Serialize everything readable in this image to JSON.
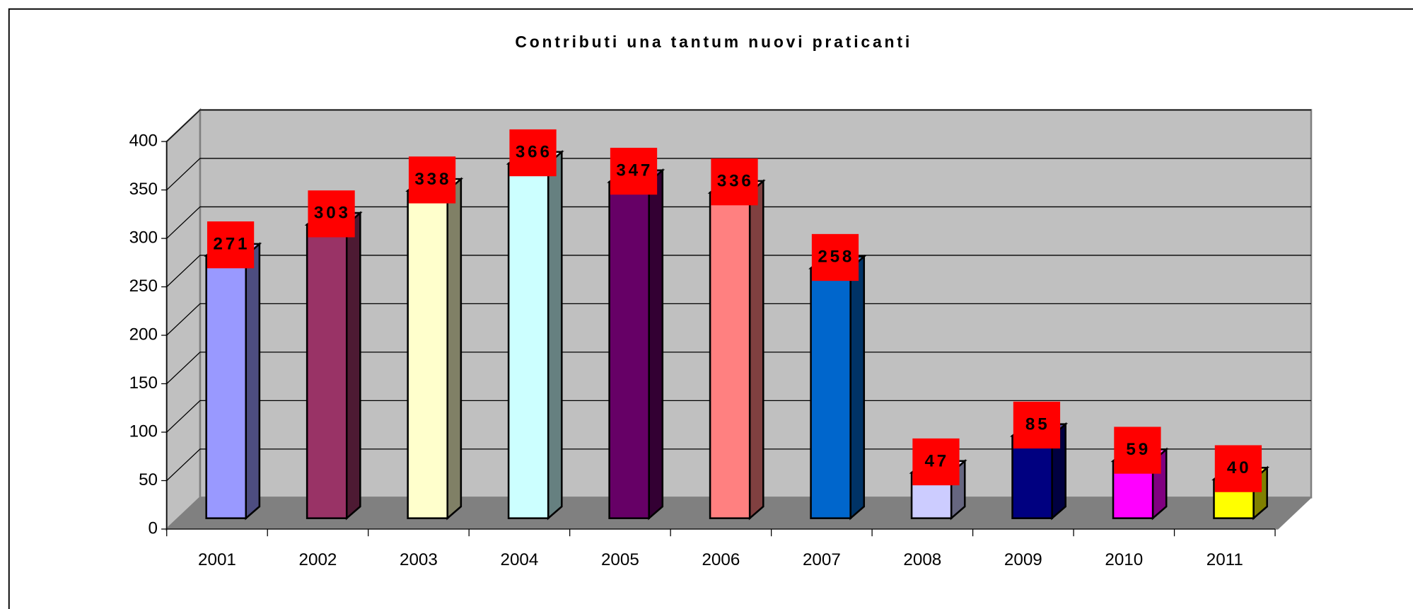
{
  "chart_data": {
    "type": "bar3d",
    "title": "Contributi una tantum nuovi praticanti",
    "categories": [
      "2001",
      "2002",
      "2003",
      "2004",
      "2005",
      "2006",
      "2007",
      "2008",
      "2009",
      "2010",
      "2011"
    ],
    "values": [
      271,
      303,
      338,
      366,
      347,
      336,
      258,
      47,
      85,
      59,
      40
    ],
    "colors": [
      "#9999ff",
      "#993366",
      "#ffffcc",
      "#ccffff",
      "#660066",
      "#ff8080",
      "#0066cc",
      "#ccccff",
      "#000080",
      "#ff00ff",
      "#ffff00"
    ],
    "ylim": [
      0,
      400
    ],
    "yticks": [
      0,
      50,
      100,
      150,
      200,
      250,
      300,
      350,
      400
    ],
    "grid": true,
    "label_color": "#ff0000"
  }
}
